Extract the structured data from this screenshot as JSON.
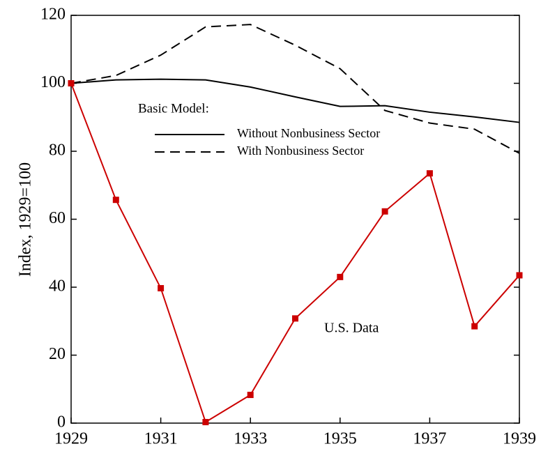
{
  "chart_data": {
    "type": "line",
    "y_label": "Index, 1929=100",
    "annotation": "Basic Model:",
    "x": [
      1929,
      1930,
      1931,
      1932,
      1933,
      1934,
      1935,
      1936,
      1937,
      1938,
      1939
    ],
    "series": [
      {
        "name": "Without Nonbusiness Sector",
        "color": "#000000",
        "line_style": "solid",
        "legend": true,
        "values": [
          100,
          101,
          101.2,
          101,
          98.9,
          96,
          93.2,
          93.4,
          91.5,
          90.1,
          88.5
        ]
      },
      {
        "name": "With Nonbusiness Sector",
        "color": "#000000",
        "line_style": "dashed",
        "legend": true,
        "values": [
          100,
          102.3,
          108.3,
          116.6,
          117.3,
          111.2,
          104.3,
          92,
          88.3,
          86.5,
          79.4
        ]
      },
      {
        "name": "U.S. Data",
        "color": "#cc0000",
        "line_style": "solid",
        "marker": "square",
        "legend": false,
        "values": [
          100,
          65.7,
          39.7,
          0.3,
          8.3,
          30.8,
          43,
          62.3,
          73.5,
          28.5,
          43.5
        ]
      }
    ],
    "xlim": [
      1929,
      1939
    ],
    "xticks": [
      1929,
      1931,
      1933,
      1935,
      1937,
      1939
    ],
    "ylim": [
      0,
      120
    ],
    "yticks": [
      0,
      20,
      40,
      60,
      80,
      100,
      120
    ],
    "grid": false
  }
}
